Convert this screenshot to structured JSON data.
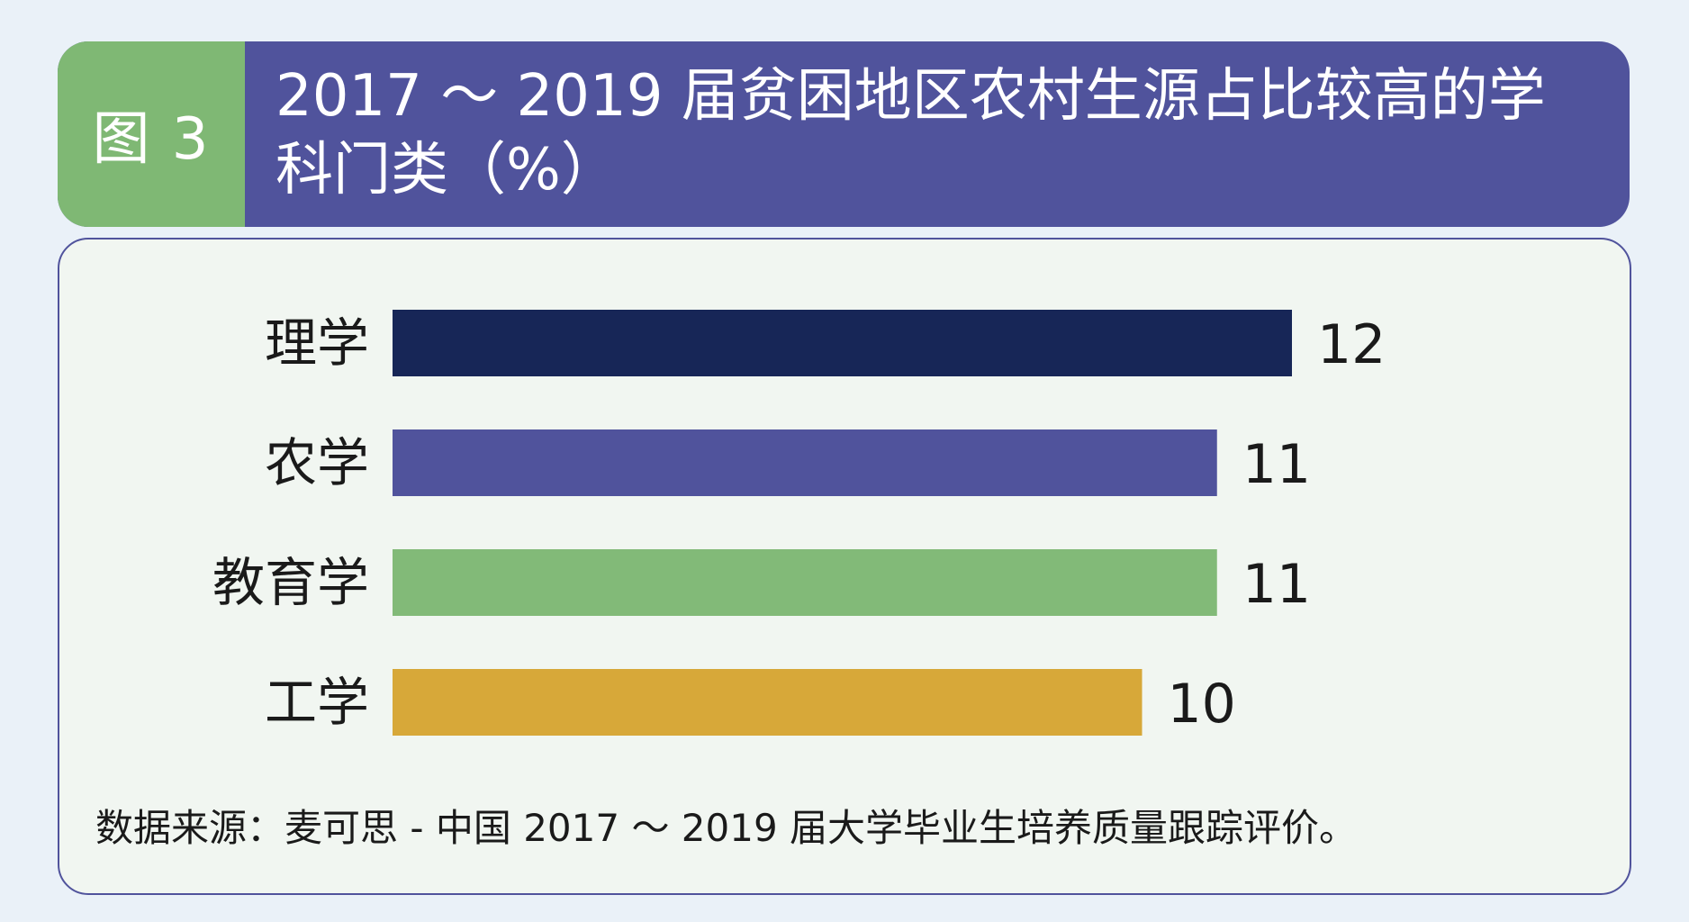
{
  "header": {
    "figure_label": "图 3",
    "title": "2017 ～ 2019 届贫困地区农村生源占比较高的学科门类（%）"
  },
  "chart_data": {
    "type": "bar",
    "orientation": "horizontal",
    "categories": [
      "理学",
      "农学",
      "教育学",
      "工学"
    ],
    "values": [
      12,
      11,
      11,
      10
    ],
    "colors": [
      "#172657",
      "#50539c",
      "#82ba78",
      "#d7a839"
    ],
    "unit": "%",
    "title": "2017 ～ 2019 届贫困地区农村生源占比较高的学科门类（%）",
    "xlabel": "",
    "ylabel": "",
    "xlim": [
      0,
      12
    ],
    "grid": false,
    "legend": "none"
  },
  "source_text": "数据来源：麦可思 - 中国 2017 ～ 2019 届大学毕业生培养质量跟踪评价。",
  "colors": {
    "background": "#eaf1f8",
    "header_bg": "#50539c",
    "figure_label_bg": "#7fb874",
    "panel_border": "#50539c",
    "panel_bg": "#f1f6f1"
  }
}
